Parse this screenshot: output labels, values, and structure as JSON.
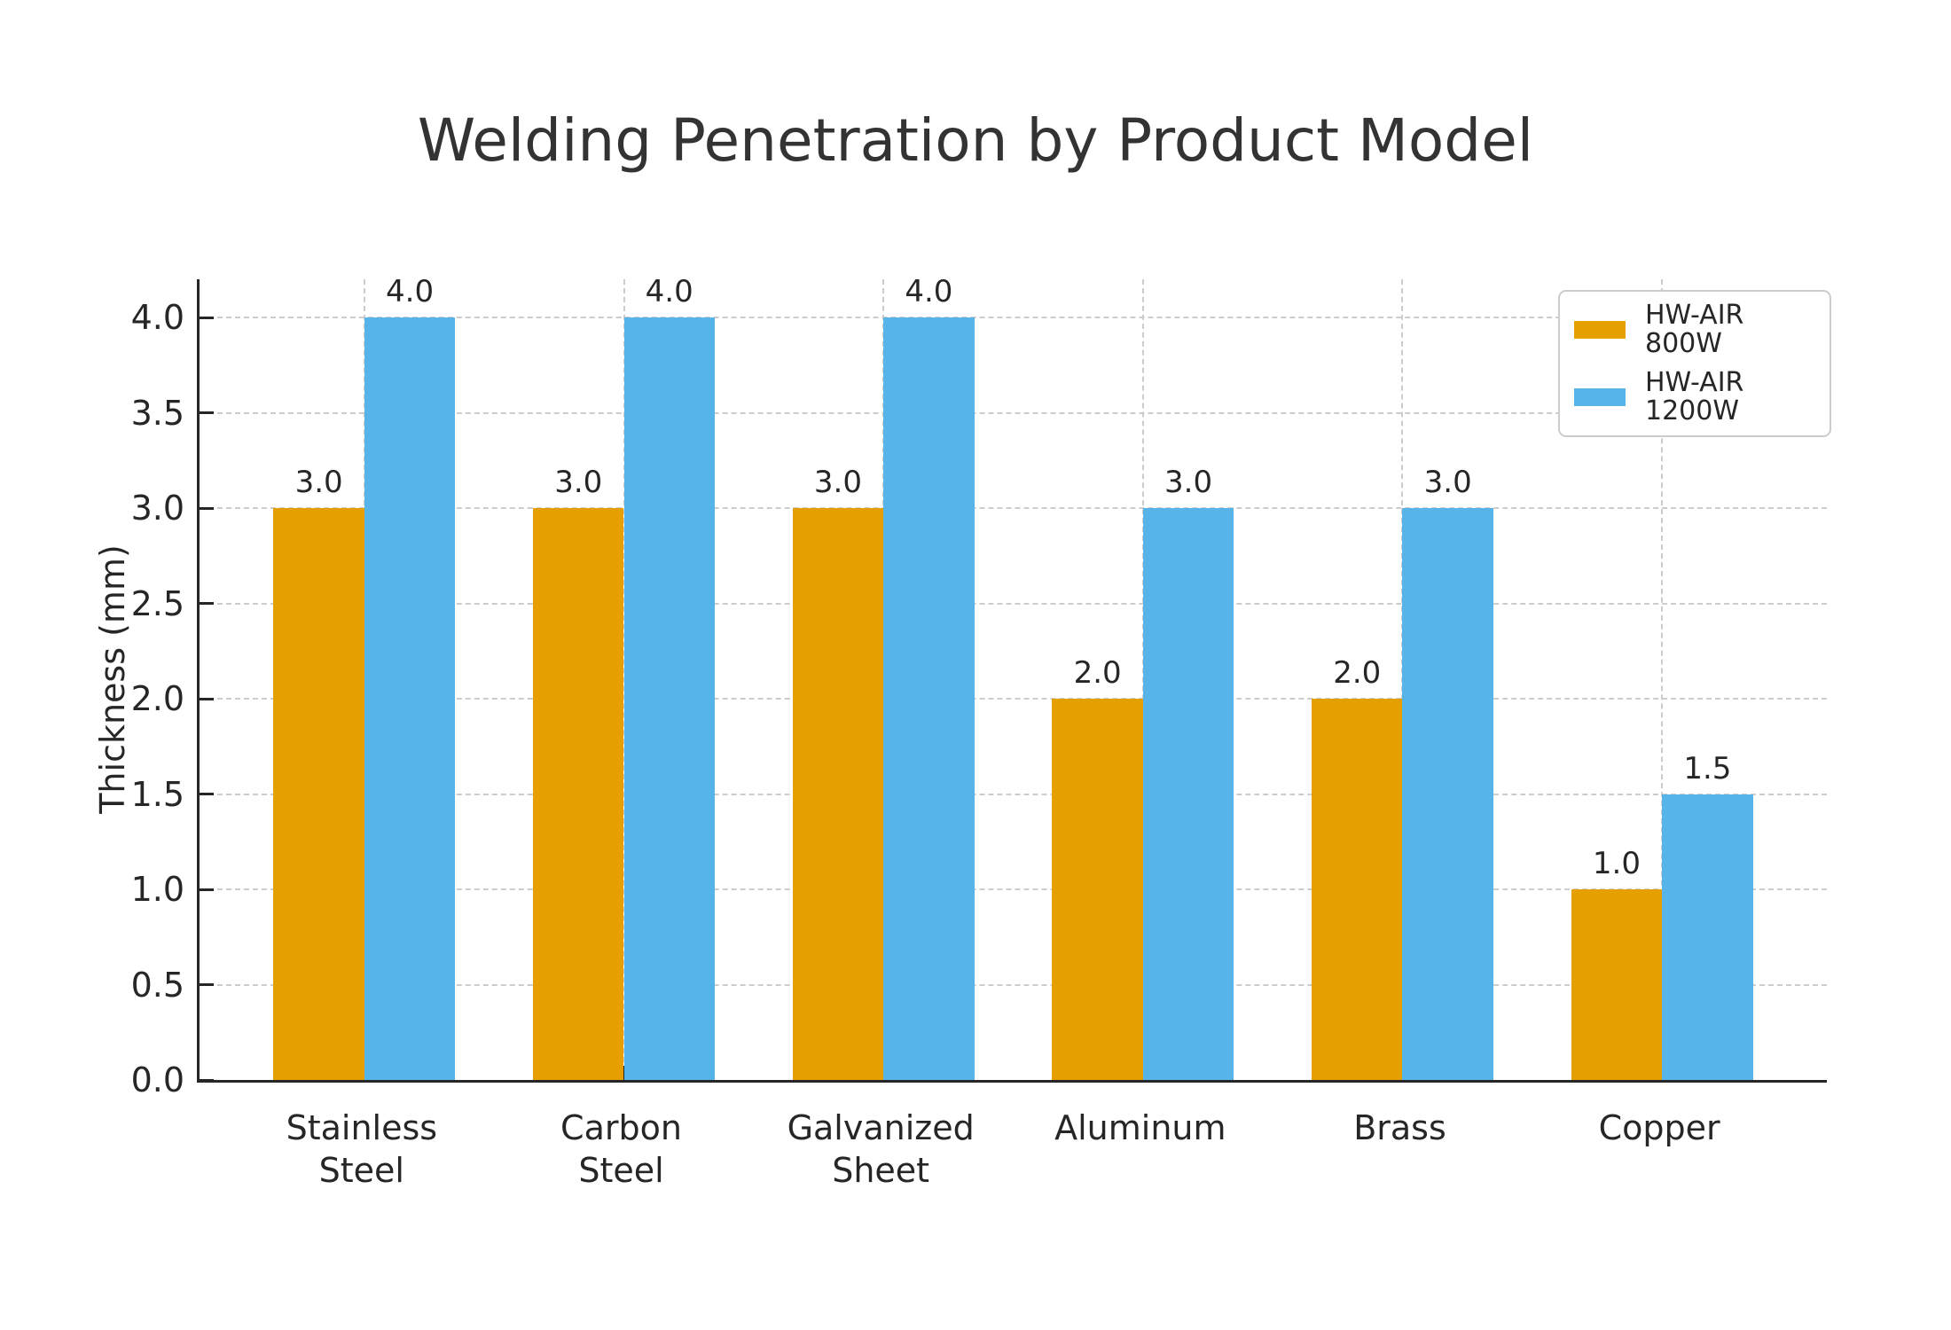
{
  "chart_data": {
    "type": "bar",
    "title": "Welding Penetration by Product Model",
    "xlabel": "",
    "ylabel": "Thickness (mm)",
    "categories": [
      "Stainless\nSteel",
      "Carbon\nSteel",
      "Galvanized\nSheet",
      "Aluminum",
      "Brass",
      "Copper"
    ],
    "series": [
      {
        "name": "HW-AIR 800W",
        "color": "#E69F00",
        "values": [
          3.0,
          3.0,
          3.0,
          2.0,
          2.0,
          1.0
        ]
      },
      {
        "name": "HW-AIR 1200W",
        "color": "#56B4E9",
        "values": [
          4.0,
          4.0,
          4.0,
          3.0,
          3.0,
          1.5
        ]
      }
    ],
    "ylim": [
      0,
      4.2
    ],
    "yticks": [
      "0.0",
      "0.5",
      "1.0",
      "1.5",
      "2.0",
      "2.5",
      "3.0",
      "3.5",
      "4.0"
    ],
    "bar_value_labels": true,
    "value_label_decimals": 1,
    "grid": "dashed-both-axes",
    "legend_position": "upper-right",
    "colors": {
      "text": "#262626",
      "title": "#333333",
      "spine": "#262626",
      "grid": "#cccccc",
      "background": "#ffffff"
    }
  }
}
